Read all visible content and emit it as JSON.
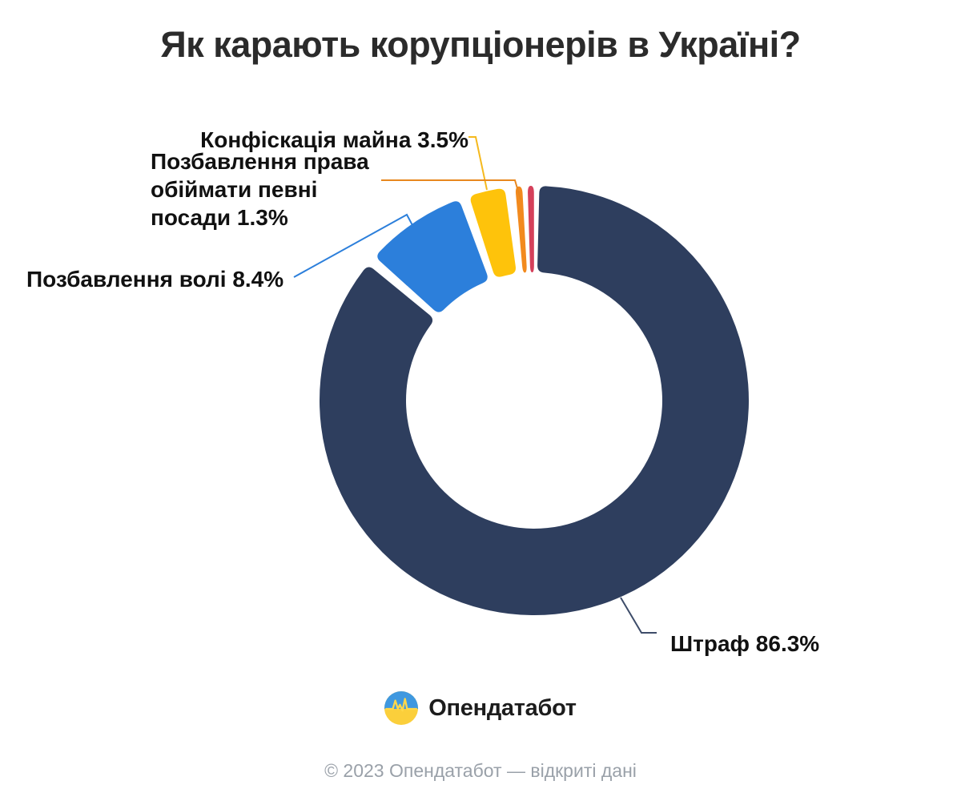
{
  "chart_data": {
    "type": "pie",
    "donut": true,
    "title": "Як карають корупціонерів в Україні?",
    "unit": "%",
    "legend_position": "callout-labels",
    "segments": [
      {
        "label": "Штраф",
        "value": 86.3,
        "color": "#2E3E5E",
        "display": "Штраф 86.3%"
      },
      {
        "label": "Позбавлення волі",
        "value": 8.4,
        "color": "#2C7FDB",
        "display": "Позбавлення волі 8.4%"
      },
      {
        "label": "Конфіскація майна",
        "value": 3.5,
        "color": "#FEC30B",
        "display": "Конфіскація майна 3.5%"
      },
      {
        "label": "Позбавлення права обіймати певні посади",
        "value": 1.3,
        "color": "#F28A1E",
        "display": "Позбавлення права\nобіймати певні\nпосади 1.3%"
      },
      {
        "label": "",
        "value": 0.5,
        "color": "#D5405A",
        "display": ""
      }
    ]
  },
  "branding": {
    "logo_text": "Опендатабот",
    "logo_colors": {
      "blue": "#3F98E0",
      "yellow": "#FBCF3B"
    }
  },
  "footer": {
    "copyright": "© 2023 Опендатабот — відкриті дані"
  }
}
